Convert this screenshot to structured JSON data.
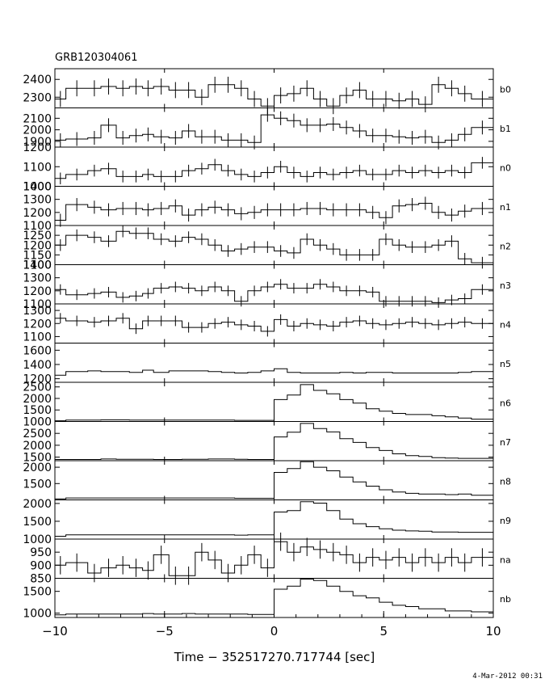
{
  "chart_data": {
    "type": "line",
    "title": "GRB120304061",
    "xlabel": "Time − 352517270.717744 [sec]",
    "xlim": [
      -10,
      10
    ],
    "x_ticks": [
      -10,
      -5,
      0,
      5,
      10
    ],
    "x_tick_labels": [
      "−10",
      "−5",
      "0",
      "5",
      "10"
    ],
    "x_edges": [
      -10,
      -9.5,
      -8.5,
      -7.9,
      -7.2,
      -6.6,
      -6.0,
      -5.5,
      -4.8,
      -4.2,
      -3.6,
      -3.0,
      -2.4,
      -1.8,
      -1.2,
      -0.6,
      0.0,
      0.6,
      1.2,
      1.8,
      2.4,
      3.0,
      3.6,
      4.2,
      4.8,
      5.4,
      6.0,
      6.6,
      7.2,
      7.8,
      8.4,
      9.0,
      10
    ],
    "x_centers": [
      -9.75,
      -9.0,
      -8.2,
      -7.55,
      -6.9,
      -6.3,
      -5.75,
      -5.15,
      -4.5,
      -3.9,
      -3.3,
      -2.7,
      -2.1,
      -1.5,
      -0.9,
      -0.3,
      0.3,
      0.9,
      1.5,
      2.1,
      2.7,
      3.3,
      3.9,
      4.5,
      5.1,
      5.7,
      6.3,
      6.9,
      7.5,
      8.1,
      8.7,
      9.5
    ],
    "panels": [
      {
        "label": "b0",
        "ylim": [
          2240,
          2460
        ],
        "yticks": [
          2300,
          2400
        ],
        "err": 45,
        "values": [
          2290,
          2350,
          2350,
          2360,
          2350,
          2360,
          2350,
          2360,
          2340,
          2340,
          2300,
          2370,
          2370,
          2350,
          2290,
          2250,
          2310,
          2320,
          2350,
          2290,
          2250,
          2310,
          2340,
          2290,
          2290,
          2280,
          2290,
          2260,
          2370,
          2350,
          2320,
          2290
        ]
      },
      {
        "label": "b1",
        "ylim": [
          1850,
          2190
        ],
        "yticks": [
          1900,
          2000,
          2100
        ],
        "err": 60,
        "values": [
          1910,
          1920,
          1930,
          2040,
          1930,
          1950,
          1960,
          1940,
          1930,
          1990,
          1940,
          1940,
          1910,
          1910,
          1890,
          2130,
          2100,
          2080,
          2040,
          2040,
          2050,
          2020,
          1990,
          1950,
          1950,
          1940,
          1930,
          1940,
          1890,
          1910,
          1960,
          2020
        ]
      },
      {
        "label": "n0",
        "ylim": [
          1000,
          1200
        ],
        "yticks": [
          1000,
          1100,
          1200
        ],
        "err": 30,
        "values": [
          1040,
          1060,
          1080,
          1090,
          1050,
          1050,
          1060,
          1050,
          1050,
          1080,
          1090,
          1110,
          1080,
          1060,
          1050,
          1070,
          1100,
          1070,
          1050,
          1070,
          1060,
          1070,
          1080,
          1060,
          1060,
          1080,
          1070,
          1080,
          1070,
          1080,
          1070,
          1120
        ]
      },
      {
        "label": "n1",
        "ylim": [
          1100,
          1400
        ],
        "yticks": [
          1100,
          1200,
          1300,
          1400
        ],
        "err": 50,
        "values": [
          1140,
          1260,
          1240,
          1220,
          1230,
          1230,
          1220,
          1230,
          1250,
          1180,
          1220,
          1240,
          1220,
          1190,
          1200,
          1220,
          1220,
          1220,
          1230,
          1230,
          1220,
          1220,
          1220,
          1200,
          1160,
          1250,
          1260,
          1270,
          1200,
          1180,
          1210,
          1230
        ]
      },
      {
        "label": "n2",
        "ylim": [
          1100,
          1300
        ],
        "yticks": [
          1100,
          1150,
          1200,
          1250
        ],
        "err": 30,
        "values": [
          1200,
          1250,
          1240,
          1220,
          1270,
          1260,
          1260,
          1230,
          1220,
          1240,
          1230,
          1200,
          1170,
          1180,
          1190,
          1190,
          1170,
          1160,
          1230,
          1200,
          1180,
          1150,
          1150,
          1150,
          1230,
          1200,
          1190,
          1190,
          1200,
          1220,
          1130,
          1110
        ]
      },
      {
        "label": "n3",
        "ylim": [
          1100,
          1400
        ],
        "yticks": [
          1100,
          1200,
          1300,
          1400
        ],
        "err": 40,
        "values": [
          1210,
          1170,
          1180,
          1190,
          1150,
          1160,
          1180,
          1220,
          1230,
          1220,
          1200,
          1230,
          1200,
          1120,
          1200,
          1230,
          1250,
          1220,
          1220,
          1250,
          1230,
          1200,
          1200,
          1190,
          1120,
          1120,
          1120,
          1120,
          1110,
          1130,
          1140,
          1210
        ]
      },
      {
        "label": "n4",
        "ylim": [
          1050,
          1350
        ],
        "yticks": [
          1100,
          1200,
          1300
        ],
        "err": 40,
        "values": [
          1240,
          1220,
          1210,
          1220,
          1240,
          1160,
          1220,
          1220,
          1220,
          1170,
          1170,
          1200,
          1210,
          1190,
          1180,
          1140,
          1230,
          1180,
          1200,
          1190,
          1180,
          1210,
          1220,
          1200,
          1190,
          1200,
          1210,
          1200,
          1190,
          1200,
          1210,
          1200
        ]
      },
      {
        "label": "n5",
        "ylim": [
          1150,
          1700
        ],
        "yticks": [
          1200,
          1400,
          1600
        ],
        "err": 0,
        "values": [
          1250,
          1300,
          1310,
          1300,
          1300,
          1290,
          1320,
          1290,
          1310,
          1310,
          1310,
          1300,
          1290,
          1280,
          1290,
          1310,
          1340,
          1290,
          1280,
          1280,
          1280,
          1290,
          1280,
          1290,
          1290,
          1280,
          1280,
          1280,
          1280,
          1280,
          1290,
          1300
        ]
      },
      {
        "label": "n6",
        "ylim": [
          1000,
          2700
        ],
        "yticks": [
          1000,
          1500,
          2000,
          2500
        ],
        "err": 0,
        "values": [
          1030,
          1060,
          1060,
          1070,
          1070,
          1060,
          1060,
          1060,
          1060,
          1060,
          1060,
          1060,
          1060,
          1050,
          1050,
          1050,
          1950,
          2150,
          2600,
          2350,
          2200,
          1950,
          1800,
          1550,
          1450,
          1350,
          1300,
          1300,
          1250,
          1200,
          1150,
          1100
        ]
      },
      {
        "label": "n7",
        "ylim": [
          1350,
          3000
        ],
        "yticks": [
          1500,
          2000,
          2500
        ],
        "err": 0,
        "values": [
          1400,
          1400,
          1400,
          1420,
          1410,
          1410,
          1410,
          1400,
          1400,
          1410,
          1410,
          1420,
          1420,
          1410,
          1400,
          1400,
          2350,
          2550,
          2920,
          2700,
          2560,
          2280,
          2120,
          1900,
          1780,
          1640,
          1560,
          1530,
          1480,
          1460,
          1450,
          1450
        ]
      },
      {
        "label": "n8",
        "ylim": [
          1000,
          2200
        ],
        "yticks": [
          1500,
          2000
        ],
        "err": 0,
        "values": [
          1030,
          1060,
          1060,
          1060,
          1060,
          1060,
          1060,
          1060,
          1060,
          1060,
          1060,
          1060,
          1060,
          1050,
          1050,
          1050,
          1840,
          1960,
          2170,
          2000,
          1890,
          1700,
          1550,
          1420,
          1310,
          1240,
          1200,
          1180,
          1180,
          1160,
          1180,
          1140
        ]
      },
      {
        "label": "n9",
        "ylim": [
          1000,
          2100
        ],
        "yticks": [
          1000,
          1500,
          2000
        ],
        "err": 0,
        "values": [
          1080,
          1120,
          1120,
          1120,
          1120,
          1120,
          1120,
          1120,
          1120,
          1120,
          1120,
          1120,
          1120,
          1110,
          1120,
          1120,
          1760,
          1800,
          2050,
          2010,
          1800,
          1560,
          1430,
          1350,
          1290,
          1250,
          1230,
          1220,
          1200,
          1200,
          1190,
          1190
        ]
      },
      {
        "label": "na",
        "ylim": [
          850,
          1000
        ],
        "yticks": [
          850,
          900,
          950
        ],
        "err": 35,
        "values": [
          900,
          910,
          870,
          890,
          900,
          890,
          880,
          940,
          860,
          860,
          950,
          920,
          870,
          900,
          940,
          890,
          990,
          950,
          970,
          960,
          950,
          940,
          910,
          930,
          920,
          930,
          910,
          930,
          910,
          930,
          910,
          930
        ]
      },
      {
        "label": "nb",
        "ylim": [
          900,
          1800
        ],
        "yticks": [
          1000,
          1500
        ],
        "err": 0,
        "values": [
          960,
          980,
          980,
          980,
          980,
          980,
          990,
          980,
          980,
          990,
          980,
          980,
          980,
          980,
          970,
          970,
          1550,
          1620,
          1780,
          1750,
          1620,
          1500,
          1400,
          1350,
          1250,
          1180,
          1150,
          1100,
          1100,
          1050,
          1050,
          1030
        ]
      }
    ]
  },
  "footer": {
    "timestamp": "4-Mar-2012 00:31"
  }
}
